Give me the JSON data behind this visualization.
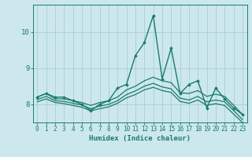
{
  "xlabel": "Humidex (Indice chaleur)",
  "bg_color": "#cce8ec",
  "line_color": "#1a7a6e",
  "grid_color": "#aacdd4",
  "xlim": [
    -0.5,
    23.5
  ],
  "ylim": [
    7.5,
    10.75
  ],
  "yticks": [
    8,
    9,
    10
  ],
  "xticks": [
    0,
    1,
    2,
    3,
    4,
    5,
    6,
    7,
    8,
    9,
    10,
    11,
    12,
    13,
    14,
    15,
    16,
    17,
    18,
    19,
    20,
    21,
    22,
    23
  ],
  "series": [
    {
      "x": [
        0,
        1,
        2,
        3,
        4,
        5,
        6,
        7,
        8,
        9,
        10,
        11,
        12,
        13,
        14,
        15,
        16,
        17,
        18,
        19,
        20,
        21,
        22,
        23
      ],
      "y": [
        8.2,
        8.3,
        8.2,
        8.2,
        8.1,
        8.0,
        7.83,
        8.0,
        8.1,
        8.45,
        8.55,
        9.35,
        9.7,
        10.45,
        8.7,
        9.55,
        8.3,
        8.55,
        8.65,
        7.9,
        8.45,
        8.15,
        7.9,
        7.72
      ],
      "marker": true,
      "linewidth": 1.0
    },
    {
      "x": [
        0,
        1,
        2,
        3,
        4,
        5,
        6,
        7,
        8,
        9,
        10,
        11,
        12,
        13,
        14,
        15,
        16,
        17,
        18,
        19,
        20,
        21,
        22,
        23
      ],
      "y": [
        8.2,
        8.3,
        8.15,
        8.15,
        8.1,
        8.05,
        7.97,
        8.05,
        8.1,
        8.2,
        8.4,
        8.5,
        8.65,
        8.75,
        8.65,
        8.6,
        8.32,
        8.3,
        8.38,
        8.22,
        8.28,
        8.22,
        7.98,
        7.72
      ],
      "marker": false,
      "linewidth": 0.9
    },
    {
      "x": [
        0,
        1,
        2,
        3,
        4,
        5,
        6,
        7,
        8,
        9,
        10,
        11,
        12,
        13,
        14,
        15,
        16,
        17,
        18,
        19,
        20,
        21,
        22,
        23
      ],
      "y": [
        8.13,
        8.22,
        8.1,
        8.08,
        8.03,
        7.98,
        7.88,
        7.95,
        8.0,
        8.1,
        8.27,
        8.37,
        8.5,
        8.58,
        8.48,
        8.43,
        8.17,
        8.12,
        8.22,
        8.07,
        8.12,
        8.07,
        7.83,
        7.58
      ],
      "marker": false,
      "linewidth": 0.9
    },
    {
      "x": [
        0,
        1,
        2,
        3,
        4,
        5,
        6,
        7,
        8,
        9,
        10,
        11,
        12,
        13,
        14,
        15,
        16,
        17,
        18,
        19,
        20,
        21,
        22,
        23
      ],
      "y": [
        8.07,
        8.15,
        8.05,
        8.02,
        7.97,
        7.92,
        7.82,
        7.88,
        7.93,
        8.03,
        8.18,
        8.27,
        8.4,
        8.47,
        8.38,
        8.33,
        8.08,
        8.03,
        8.12,
        7.97,
        8.02,
        7.97,
        7.73,
        7.5
      ],
      "marker": false,
      "linewidth": 0.9
    }
  ]
}
